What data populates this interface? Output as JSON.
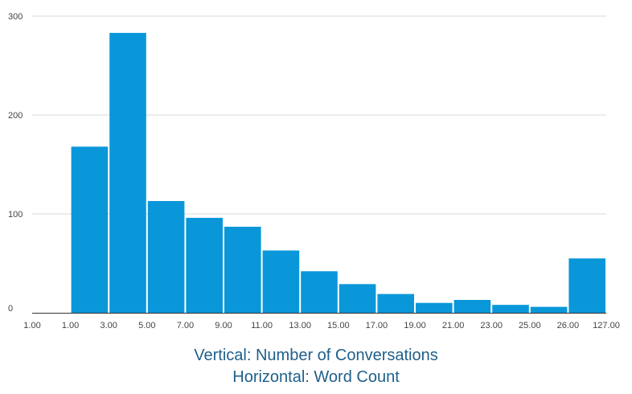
{
  "chart_data": {
    "type": "bar",
    "x_tick_labels": [
      "1.00",
      "1.00",
      "3.00",
      "5.00",
      "7.00",
      "9.00",
      "11.00",
      "13.00",
      "15.00",
      "17.00",
      "19.00",
      "21.00",
      "23.00",
      "25.00",
      "26.00",
      "127.00"
    ],
    "values": [
      0,
      168,
      283,
      113,
      96,
      87,
      63,
      42,
      29,
      19,
      10,
      13,
      8,
      6,
      55
    ],
    "y_ticks": [
      0,
      100,
      200,
      300
    ],
    "ylim": [
      0,
      300
    ],
    "grid": true,
    "bar_color": "#0a97d9",
    "caption": [
      "Vertical: Number of Conversations",
      "Horizontal: Word Count"
    ]
  }
}
